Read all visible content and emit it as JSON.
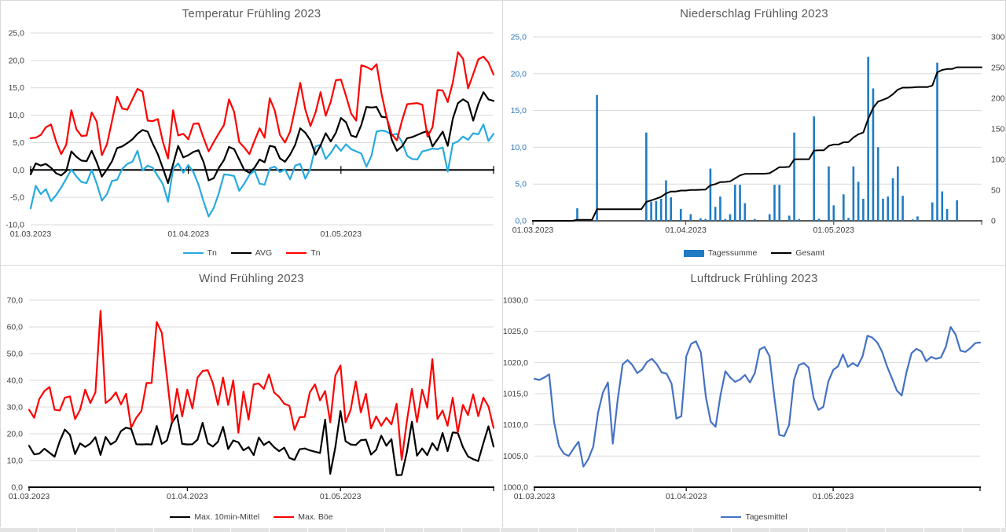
{
  "ui": {
    "background": "#ffffff",
    "panel_border": "#d9d9d9",
    "grid_color": "#d9d9d9",
    "title_color": "#595959",
    "axis_label_color": "#404040",
    "accent_blue_axis": "#2E75B6",
    "bar_blue": "#1F7BC4",
    "pressure_blue": "#4472C4",
    "temp_min_blue": "#27AAE1",
    "series_red": "#FF0000",
    "series_black": "#000000"
  },
  "chart_data": [
    {
      "title": "Temperatur Frühling 2023",
      "type": "line",
      "days": 92,
      "x_tick_labels": [
        "01.03.2023",
        "01.04.2023",
        "01.05.2023"
      ],
      "x_label_days": [
        0,
        31,
        61
      ],
      "x_tick_days": [
        0,
        31,
        61,
        91
      ],
      "y_left": {
        "min": -10,
        "max": 25,
        "step": 5,
        "decimals": 1,
        "color": "#404040"
      },
      "axis_at": 0,
      "axis_color": "#000000",
      "tick_style": "cross",
      "grid": true,
      "legend_position": "bottom",
      "series": [
        {
          "name": "Tn",
          "color": "#27AAE1",
          "type": "line",
          "values": [
            -7.0,
            -2.9,
            -4.4,
            -3.5,
            -5.7,
            -4.6,
            -3.2,
            -1.6,
            0.1,
            -1.2,
            -2.2,
            -2.4,
            0.0,
            -2.5,
            -5.6,
            -4.4,
            -2.0,
            -1.8,
            0.2,
            1.1,
            1.5,
            3.5,
            -0.1,
            0.8,
            0.4,
            -1.1,
            -2.6,
            -5.8,
            0.2,
            1.2,
            -0.5,
            0.9,
            -0.4,
            -2.7,
            -5.8,
            -8.5,
            -6.9,
            -4.2,
            -0.8,
            -0.9,
            -1.1,
            -3.8,
            -2.5,
            -0.9,
            -0.1,
            -2.5,
            -2.7,
            0.3,
            0.6,
            -0.4,
            0.1,
            -1.7,
            0.8,
            1.1,
            -1.6,
            0.3,
            4.3,
            4.6,
            2.0,
            3.1,
            4.6,
            3.5,
            4.7,
            3.8,
            3.4,
            3.0,
            0.6,
            2.6,
            7.0,
            7.2,
            7.0,
            6.4,
            6.6,
            5.1,
            2.6,
            2.0,
            1.9,
            3.4,
            3.6,
            3.9,
            3.8,
            4.1,
            -0.3,
            4.8,
            5.2,
            6.1,
            5.5,
            6.7,
            6.5,
            8.3,
            5.3,
            6.6
          ]
        },
        {
          "name": "AVG",
          "color": "#000000",
          "type": "line",
          "values": [
            -0.8,
            1.2,
            0.8,
            1.1,
            0.4,
            -0.6,
            -1.0,
            -0.2,
            3.4,
            2.4,
            1.7,
            1.6,
            3.5,
            1.4,
            -1.2,
            0.1,
            1.6,
            4.0,
            4.3,
            4.9,
            5.6,
            6.6,
            7.3,
            7.0,
            4.8,
            2.9,
            0.3,
            -2.4,
            1.0,
            4.4,
            2.3,
            2.7,
            3.3,
            3.6,
            1.4,
            -1.9,
            -1.5,
            0.4,
            1.8,
            4.2,
            3.8,
            1.9,
            0.0,
            -0.5,
            0.4,
            1.9,
            1.4,
            4.4,
            4.2,
            2.1,
            1.5,
            2.8,
            4.6,
            7.6,
            6.8,
            5.4,
            2.8,
            4.5,
            6.7,
            5.2,
            6.8,
            9.5,
            8.7,
            6.3,
            6.0,
            8.2,
            11.5,
            11.4,
            11.5,
            9.7,
            9.6,
            5.5,
            3.5,
            4.3,
            5.8,
            6.0,
            6.4,
            6.8,
            7.1,
            4.3,
            5.6,
            7.0,
            4.4,
            9.4,
            12.2,
            12.9,
            12.3,
            9.0,
            12.0,
            14.2,
            12.9,
            12.6
          ]
        },
        {
          "name": "Tn",
          "color": "#FF0000",
          "type": "line",
          "values": [
            5.8,
            5.9,
            6.4,
            7.8,
            8.3,
            5.2,
            2.9,
            4.6,
            10.9,
            7.4,
            6.2,
            6.3,
            10.5,
            8.8,
            2.7,
            4.7,
            9.0,
            13.4,
            11.2,
            11.0,
            12.9,
            14.8,
            14.3,
            9.0,
            8.9,
            9.3,
            5.1,
            2.1,
            10.9,
            6.3,
            6.6,
            5.6,
            8.4,
            8.5,
            5.8,
            3.4,
            5.1,
            6.7,
            8.2,
            12.9,
            10.6,
            5.1,
            4.1,
            2.9,
            5.3,
            7.6,
            5.9,
            13.1,
            10.8,
            6.4,
            5.0,
            7.0,
            11.3,
            15.9,
            11.0,
            8.0,
            10.5,
            14.2,
            9.9,
            12.5,
            16.4,
            16.5,
            13.5,
            10.3,
            9.0,
            19.1,
            18.8,
            18.3,
            19.3,
            13.8,
            9.5,
            6.5,
            5.4,
            9.0,
            12.0,
            12.1,
            12.2,
            11.9,
            6.1,
            7.8,
            14.6,
            14.5,
            12.4,
            16.0,
            21.5,
            20.3,
            14.9,
            17.5,
            20.2,
            20.7,
            19.6,
            17.4
          ]
        }
      ]
    },
    {
      "title": "Niederschlag Frühling 2023",
      "type": "bar",
      "days": 92,
      "x_tick_labels": [
        "01.03.2023",
        "01.04.2023",
        "01.05.2023"
      ],
      "x_label_days": [
        0,
        31,
        61
      ],
      "x_tick_days": [
        0,
        31,
        61,
        91
      ],
      "y_left": {
        "min": 0,
        "max": 25,
        "step": 5,
        "decimals": 1,
        "color": "#2E75B6"
      },
      "y_right": {
        "min": 0,
        "max": 300,
        "step": 50,
        "decimals": 0,
        "color": "#404040"
      },
      "axis_at": 0,
      "axis_color": "#595959",
      "tick_style": "below",
      "grid": true,
      "legend_position": "bottom",
      "series": [
        {
          "name": "Tagessumme",
          "color": "#1F7BC4",
          "type": "bar",
          "axis": "left",
          "values": [
            0,
            0,
            0,
            0,
            0,
            0,
            0,
            0,
            0,
            1.7,
            0,
            0,
            0,
            17.1,
            0,
            0,
            0,
            0,
            0,
            0,
            0,
            0,
            0,
            12.0,
            2.6,
            2.7,
            3.0,
            5.5,
            3.2,
            0,
            1.6,
            0,
            0.9,
            0,
            0.35,
            0.25,
            7.1,
            1.9,
            3.3,
            0.25,
            0.9,
            4.9,
            4.9,
            2.4,
            0,
            0.25,
            0,
            0,
            0.9,
            4.9,
            4.9,
            0,
            0.7,
            12.0,
            0.25,
            0,
            0,
            14.2,
            0.3,
            0,
            7.4,
            2.1,
            0,
            3.6,
            0.4,
            7.4,
            5.3,
            3.0,
            22.3,
            18.0,
            10.0,
            3.0,
            3.3,
            5.8,
            7.4,
            3.4,
            0,
            0.2,
            0.6,
            0,
            0,
            2.5,
            21.5,
            4.0,
            1.6,
            0,
            2.8,
            0,
            0,
            0,
            0,
            0
          ]
        },
        {
          "name": "Gesamt",
          "color": "#000000",
          "type": "line",
          "axis": "right",
          "cumulative_of": 0,
          "values": []
        }
      ]
    },
    {
      "title": "Wind Frühling 2023",
      "type": "line",
      "days": 92,
      "x_tick_labels": [
        "01.03.2023",
        "01.04.2023",
        "01.05.2023"
      ],
      "x_label_days": [
        0,
        31,
        61
      ],
      "x_tick_days": [
        0,
        31,
        61,
        91
      ],
      "y_left": {
        "min": 0,
        "max": 70,
        "step": 10,
        "decimals": 1,
        "color": "#404040"
      },
      "axis_at": 0,
      "axis_color": "#000000",
      "tick_style": "below",
      "grid": true,
      "legend_position": "bottom",
      "series": [
        {
          "name": "Max. 10min-Mittel",
          "color": "#000000",
          "type": "line",
          "values": [
            15.5,
            12.3,
            12.6,
            14.4,
            12.9,
            11.4,
            17.2,
            21.6,
            19.6,
            12.4,
            16.4,
            15.1,
            16.3,
            18.7,
            12.1,
            18.8,
            16.0,
            17.2,
            21.0,
            22.3,
            21.8,
            16.1,
            16.0,
            16.1,
            16.0,
            22.9,
            16.2,
            17.5,
            24.2,
            27.0,
            16.2,
            16.0,
            16.1,
            17.8,
            24.1,
            16.5,
            15.2,
            17.0,
            22.6,
            14.3,
            17.5,
            16.8,
            13.8,
            15.0,
            12.0,
            18.6,
            15.8,
            17.1,
            15.0,
            13.5,
            14.8,
            11.0,
            10.2,
            14.2,
            14.5,
            13.8,
            13.3,
            12.8,
            25.3,
            5.0,
            15.0,
            28.5,
            17.2,
            16.0,
            15.8,
            17.6,
            17.8,
            12.2,
            14.0,
            19.3,
            15.5,
            18.0,
            4.5,
            4.6,
            13.0,
            24.5,
            11.8,
            14.5,
            12.0,
            16.5,
            13.8,
            20.3,
            13.5,
            20.5,
            20.3,
            15.0,
            11.5,
            10.5,
            9.8,
            16.5,
            22.8,
            15.2
          ]
        },
        {
          "name": "Max. Böe",
          "color": "#FF0000",
          "type": "line",
          "values": [
            29.0,
            26.0,
            33.0,
            36.0,
            37.5,
            29.0,
            28.7,
            33.5,
            34.0,
            25.5,
            29.0,
            36.5,
            31.5,
            35.5,
            66.0,
            31.5,
            33.0,
            35.5,
            31.0,
            35.0,
            22.3,
            26.0,
            28.5,
            39.0,
            39.0,
            61.8,
            57.8,
            41.2,
            24.5,
            36.8,
            26.5,
            36.5,
            29.5,
            41.0,
            43.5,
            43.8,
            39.0,
            30.8,
            41.0,
            30.8,
            40.0,
            20.4,
            35.8,
            25.3,
            38.5,
            38.8,
            36.8,
            42.2,
            35.5,
            33.8,
            31.2,
            30.5,
            21.5,
            26.2,
            26.3,
            35.5,
            38.5,
            32.5,
            36.0,
            24.3,
            41.8,
            45.6,
            24.3,
            29.0,
            39.6,
            28.0,
            35.0,
            22.0,
            26.5,
            23.0,
            26.0,
            23.5,
            31.2,
            10.2,
            24.5,
            36.8,
            24.4,
            36.5,
            29.8,
            47.9,
            25.5,
            28.7,
            23.0,
            33.5,
            20.5,
            30.8,
            27.0,
            34.8,
            26.6,
            33.5,
            30.2,
            22.2
          ]
        }
      ]
    },
    {
      "title": "Luftdruck Frühling 2023",
      "type": "line",
      "days": 92,
      "x_tick_labels": [
        "01.03.2023",
        "01.04.2023",
        "01.05.2023"
      ],
      "x_label_days": [
        0,
        31,
        61
      ],
      "x_tick_days": [
        0,
        31,
        61,
        91
      ],
      "y_left": {
        "min": 1000,
        "max": 1030,
        "step": 5,
        "decimals": 1,
        "color": "#404040"
      },
      "axis_at": 1000,
      "axis_color": "#000000",
      "tick_style": "below",
      "grid": true,
      "legend_position": "bottom",
      "series": [
        {
          "name": "Tagesmittel",
          "color": "#4472C4",
          "type": "line",
          "values": [
            1017.4,
            1017.2,
            1017.6,
            1018.1,
            1010.5,
            1006.6,
            1005.4,
            1005.0,
            1006.2,
            1007.3,
            1003.3,
            1004.5,
            1006.5,
            1012.0,
            1015.2,
            1016.8,
            1007.0,
            1014.0,
            1019.7,
            1020.4,
            1019.6,
            1018.3,
            1018.9,
            1020.1,
            1020.6,
            1019.7,
            1018.4,
            1018.2,
            1016.6,
            1011.0,
            1011.4,
            1021.0,
            1023.0,
            1023.4,
            1021.6,
            1014.5,
            1010.5,
            1009.7,
            1014.8,
            1018.6,
            1017.6,
            1016.9,
            1017.3,
            1018.0,
            1016.8,
            1018.3,
            1022.1,
            1022.5,
            1021.0,
            1014.4,
            1008.4,
            1008.2,
            1010.0,
            1017.2,
            1019.6,
            1019.9,
            1019.2,
            1014.3,
            1012.4,
            1012.9,
            1016.9,
            1018.8,
            1019.4,
            1021.3,
            1019.3,
            1019.9,
            1019.4,
            1021.0,
            1024.3,
            1024.0,
            1023.2,
            1021.7,
            1019.4,
            1017.5,
            1015.5,
            1014.7,
            1018.5,
            1021.5,
            1022.2,
            1021.8,
            1020.2,
            1020.9,
            1020.6,
            1020.8,
            1022.5,
            1025.7,
            1024.5,
            1021.9,
            1021.7,
            1022.3,
            1023.1,
            1023.2
          ]
        }
      ]
    }
  ]
}
